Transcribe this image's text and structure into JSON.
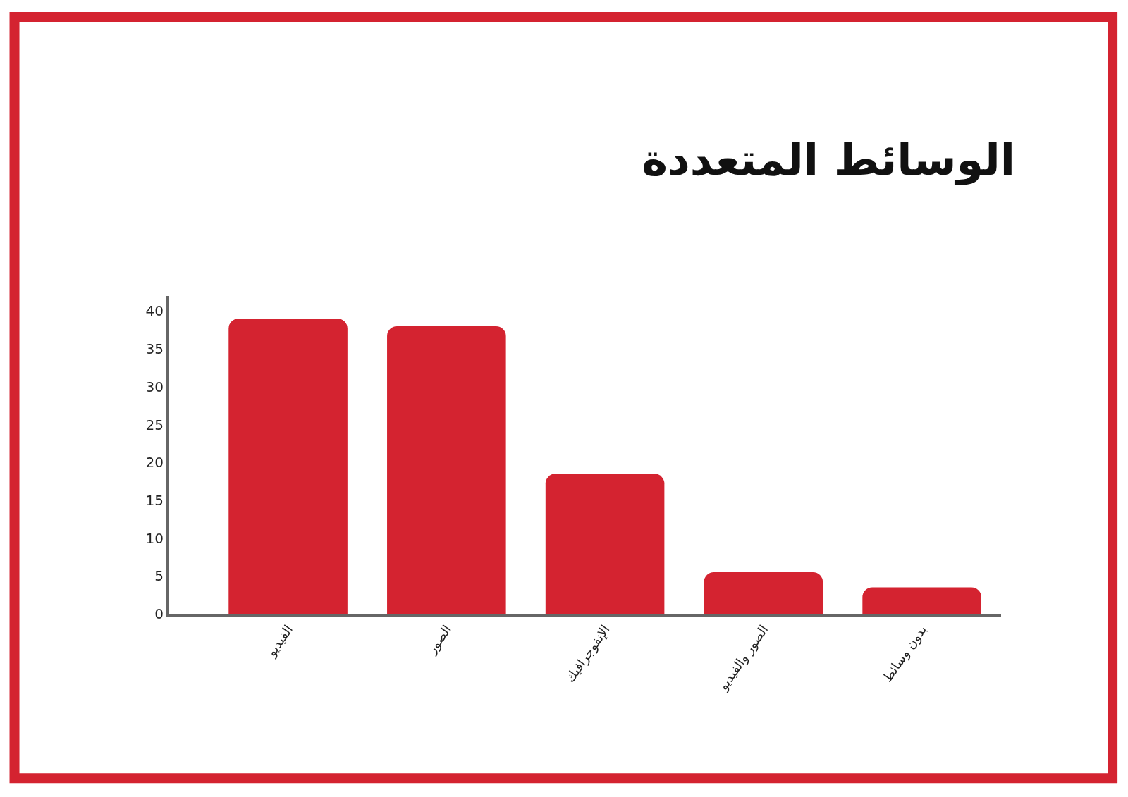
{
  "chart_data": {
    "type": "bar",
    "title": "الوسائط المتعددة",
    "categories": [
      "الفيديو",
      "الصور",
      "الإنفوجرافيك",
      "الصور والفيديو",
      "بدون وسائط"
    ],
    "values": [
      39,
      38,
      18.5,
      5.5,
      3.5
    ],
    "color": "#d42330",
    "ylim": [
      0,
      42
    ],
    "yticks": [
      0,
      5,
      10,
      15,
      20,
      25,
      30,
      35,
      40
    ]
  }
}
